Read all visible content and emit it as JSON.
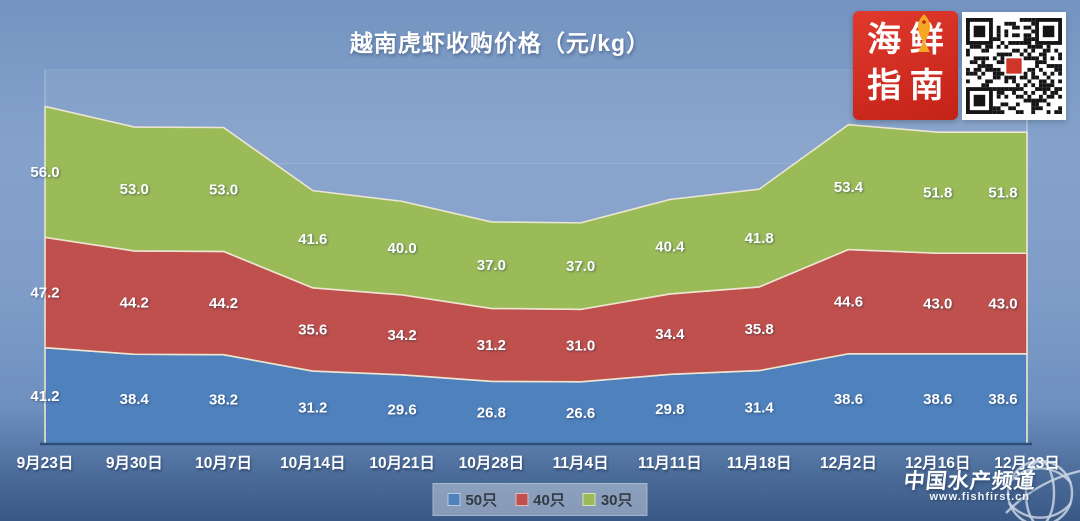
{
  "title": "越南虎虾收购价格（元/kg）",
  "chart_data": {
    "type": "area",
    "stacked": true,
    "title": "越南虎虾收购价格（元/kg）",
    "categories": [
      "9月23日",
      "9月30日",
      "10月7日",
      "10月14日",
      "10月21日",
      "10月28日",
      "11月4日",
      "11月11日",
      "11月18日",
      "12月2日",
      "12月16日",
      "12月23日"
    ],
    "series": [
      {
        "name": "50只",
        "color": "#4f81bd",
        "values": [
          41.2,
          38.4,
          38.2,
          31.2,
          29.6,
          26.8,
          26.6,
          29.8,
          31.4,
          38.6,
          38.6,
          38.6
        ]
      },
      {
        "name": "40只",
        "color": "#c0504d",
        "values": [
          47.2,
          44.2,
          44.2,
          35.6,
          34.2,
          31.2,
          31.0,
          34.4,
          35.8,
          44.6,
          43.0,
          43.0
        ]
      },
      {
        "name": "30只",
        "color": "#9bbb59",
        "values": [
          56.0,
          53.0,
          53.0,
          41.6,
          40.0,
          37.0,
          37.0,
          40.4,
          41.8,
          53.4,
          51.8,
          51.8
        ]
      }
    ],
    "ylim": [
      0,
      160
    ],
    "grid": false,
    "legend_position": "bottom",
    "data_labels": true,
    "label_decimals": 1,
    "edge_stroke_color": "#ece5d1"
  },
  "branding": {
    "logo_chars": [
      "海",
      "鲜",
      "指",
      "南"
    ],
    "logo_bg": "#d02c20",
    "fish_color": "#f6a623"
  },
  "watermark": {
    "name": "中国水产频道",
    "url": "www.fishfirst.cn"
  }
}
